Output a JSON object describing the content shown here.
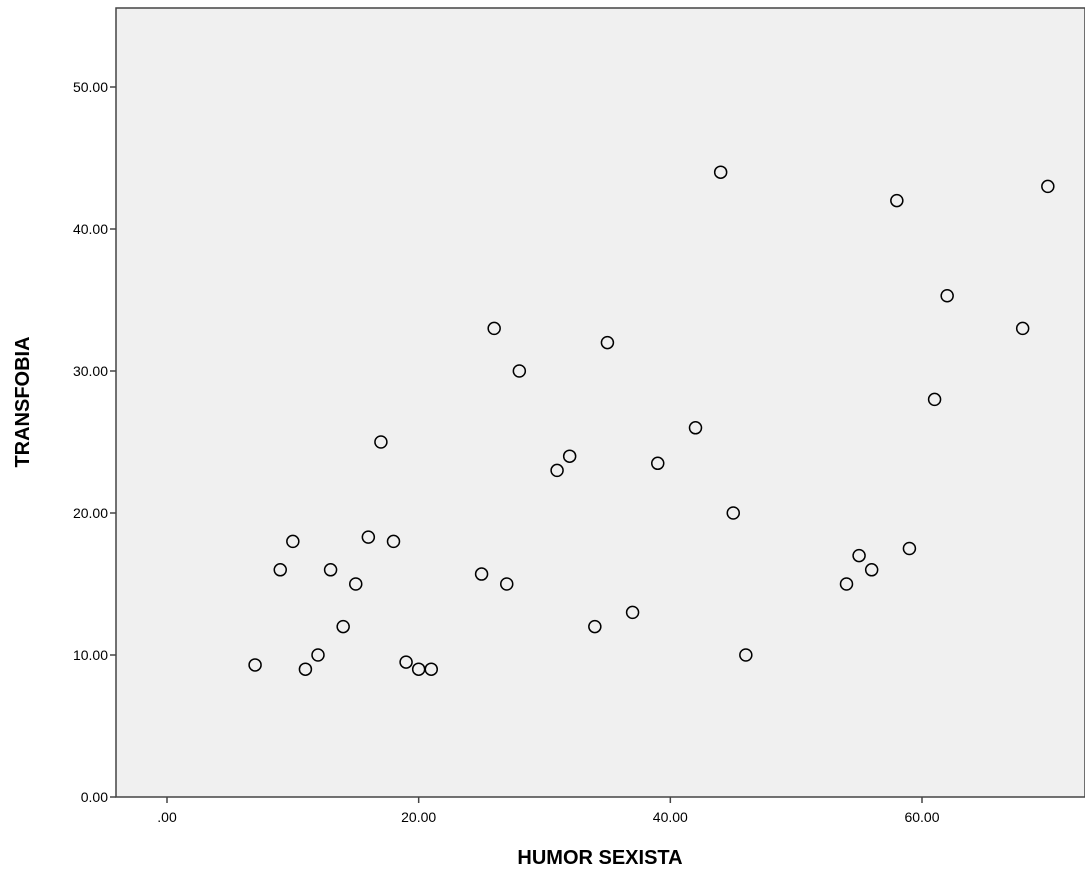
{
  "chart_data": {
    "type": "scatter",
    "xlabel": "HUMOR SEXISTA",
    "ylabel": "TRANSFOBIA",
    "xlim": [
      -4,
      73
    ],
    "ylim": [
      0,
      55
    ],
    "x_ticks": [
      0,
      20,
      40,
      60
    ],
    "x_tick_labels": [
      ".00",
      "20.00",
      "40.00",
      "60.00"
    ],
    "y_ticks": [
      0,
      10,
      20,
      30,
      40,
      50
    ],
    "y_tick_labels": [
      "0.00",
      "10.00",
      "20.00",
      "30.00",
      "40.00",
      "50.00"
    ],
    "grid": false,
    "background": "#f0f0f0",
    "marker": "open-circle",
    "points": [
      {
        "x": 7,
        "y": 9.3
      },
      {
        "x": 9,
        "y": 16
      },
      {
        "x": 10,
        "y": 18
      },
      {
        "x": 11,
        "y": 9
      },
      {
        "x": 12,
        "y": 10
      },
      {
        "x": 13,
        "y": 16
      },
      {
        "x": 14,
        "y": 12
      },
      {
        "x": 15,
        "y": 15
      },
      {
        "x": 16,
        "y": 18.3
      },
      {
        "x": 17,
        "y": 25
      },
      {
        "x": 18,
        "y": 18
      },
      {
        "x": 19,
        "y": 9.5
      },
      {
        "x": 20,
        "y": 9
      },
      {
        "x": 21,
        "y": 9
      },
      {
        "x": 25,
        "y": 15.7
      },
      {
        "x": 26,
        "y": 33
      },
      {
        "x": 27,
        "y": 15
      },
      {
        "x": 28,
        "y": 30
      },
      {
        "x": 31,
        "y": 23
      },
      {
        "x": 32,
        "y": 24
      },
      {
        "x": 34,
        "y": 12
      },
      {
        "x": 35,
        "y": 32
      },
      {
        "x": 37,
        "y": 13
      },
      {
        "x": 39,
        "y": 23.5
      },
      {
        "x": 42,
        "y": 26
      },
      {
        "x": 44,
        "y": 44
      },
      {
        "x": 45,
        "y": 20
      },
      {
        "x": 46,
        "y": 10
      },
      {
        "x": 54,
        "y": 15
      },
      {
        "x": 55,
        "y": 17
      },
      {
        "x": 56,
        "y": 16
      },
      {
        "x": 58,
        "y": 42
      },
      {
        "x": 59,
        "y": 17.5
      },
      {
        "x": 61,
        "y": 28
      },
      {
        "x": 62,
        "y": 35.3
      },
      {
        "x": 68,
        "y": 33
      },
      {
        "x": 70,
        "y": 43
      }
    ]
  }
}
